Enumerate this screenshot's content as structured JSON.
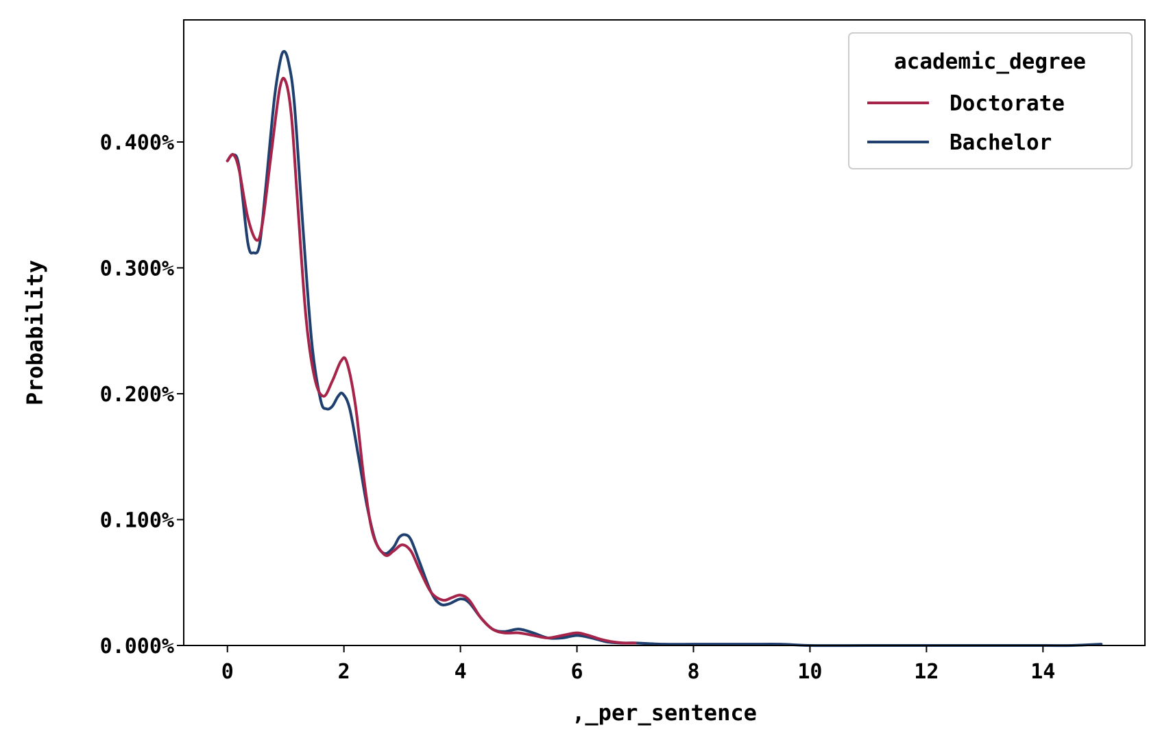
{
  "chart_data": {
    "type": "line",
    "title": "",
    "xlabel": ",_per_sentence",
    "ylabel": "Probability",
    "xlim": [
      -0.75,
      15.75
    ],
    "ylim": [
      0,
      0.00497
    ],
    "x_ticks": [
      0,
      2,
      4,
      6,
      8,
      10,
      12,
      14
    ],
    "x_tick_labels": [
      "0",
      "2",
      "4",
      "6",
      "8",
      "10",
      "12",
      "14"
    ],
    "y_ticks": [
      0,
      0.001,
      0.002,
      0.003,
      0.004
    ],
    "y_tick_labels": [
      "0.000%",
      "0.100%",
      "0.200%",
      "0.300%",
      "0.400%"
    ],
    "grid": false,
    "legend": {
      "title": "academic_degree",
      "placement": "top-right"
    },
    "series": [
      {
        "name": "Doctorate",
        "color": "#a6234a",
        "x": [
          0,
          0.1,
          0.2,
          0.35,
          0.5,
          0.6,
          0.75,
          0.9,
          1.0,
          1.1,
          1.2,
          1.35,
          1.5,
          1.65,
          1.8,
          1.95,
          2.05,
          2.2,
          2.35,
          2.5,
          2.7,
          2.85,
          3.0,
          3.15,
          3.3,
          3.5,
          3.7,
          3.85,
          4.0,
          4.15,
          4.35,
          4.55,
          4.75,
          5.0,
          5.25,
          5.5,
          5.75,
          6.0,
          6.2,
          6.4,
          6.6,
          6.8,
          7.0
        ],
        "y": [
          0.00385,
          0.0039,
          0.00378,
          0.0034,
          0.00322,
          0.00335,
          0.0039,
          0.00443,
          0.00448,
          0.0042,
          0.00355,
          0.0026,
          0.00212,
          0.00198,
          0.0021,
          0.00226,
          0.00225,
          0.0019,
          0.0013,
          0.00088,
          0.00072,
          0.00075,
          0.0008,
          0.00075,
          0.0006,
          0.00042,
          0.00036,
          0.00038,
          0.0004,
          0.00036,
          0.00022,
          0.00013,
          0.0001,
          0.0001,
          8e-05,
          6e-05,
          8e-05,
          0.0001,
          8e-05,
          5e-05,
          3e-05,
          2e-05,
          2e-05
        ]
      },
      {
        "name": "Bachelor",
        "color": "#1f3f6e",
        "x": [
          0,
          0.1,
          0.2,
          0.35,
          0.45,
          0.55,
          0.65,
          0.8,
          0.9,
          0.97,
          1.05,
          1.15,
          1.3,
          1.45,
          1.6,
          1.7,
          1.8,
          1.9,
          1.98,
          2.1,
          2.25,
          2.4,
          2.55,
          2.7,
          2.85,
          2.95,
          3.05,
          3.15,
          3.3,
          3.5,
          3.65,
          3.8,
          4.0,
          4.15,
          4.35,
          4.55,
          4.75,
          5.0,
          5.25,
          5.5,
          5.75,
          6.0,
          6.25,
          6.5,
          6.75,
          7.0,
          7.5,
          8.0,
          8.5,
          9.0,
          9.5,
          10.0,
          11.0,
          12.0,
          13.0,
          14.0,
          14.5,
          15.0
        ],
        "y": [
          0.00385,
          0.0039,
          0.0038,
          0.0032,
          0.00312,
          0.00318,
          0.0036,
          0.00432,
          0.00463,
          0.00472,
          0.00463,
          0.0043,
          0.0033,
          0.0024,
          0.00195,
          0.00188,
          0.0019,
          0.00198,
          0.002,
          0.00188,
          0.0015,
          0.0011,
          0.00082,
          0.00073,
          0.00078,
          0.00086,
          0.00088,
          0.00084,
          0.00066,
          0.00042,
          0.00033,
          0.00033,
          0.00037,
          0.00034,
          0.00022,
          0.00013,
          0.00011,
          0.00013,
          0.0001,
          6e-05,
          6e-05,
          8e-05,
          6e-05,
          3e-05,
          2e-05,
          2e-05,
          1e-05,
          1e-05,
          1e-05,
          1e-05,
          1e-05,
          0.0,
          0.0,
          0.0,
          0.0,
          0.0,
          0.0,
          1e-05
        ]
      }
    ]
  }
}
